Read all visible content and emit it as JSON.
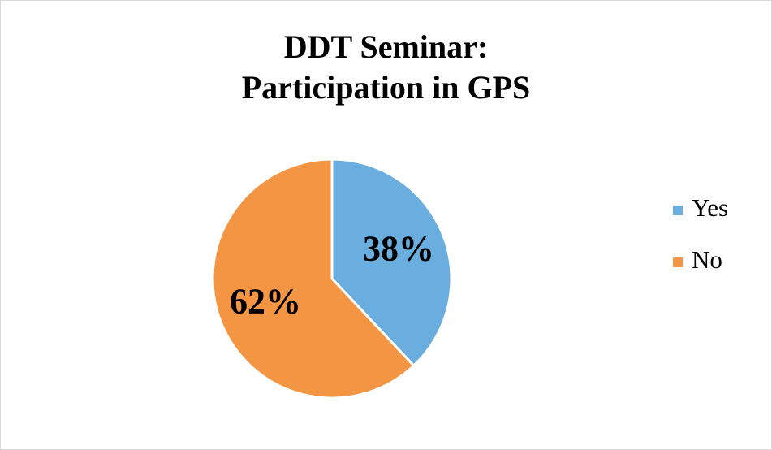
{
  "chart_data": {
    "type": "pie",
    "title": "DDT Seminar:\nParticipation in GPS",
    "categories": [
      "Yes",
      "No"
    ],
    "values": [
      38,
      62
    ],
    "value_labels": [
      "38%",
      "62%"
    ],
    "colors": [
      "#6AAEDF",
      "#F39542"
    ],
    "legend": "right"
  }
}
